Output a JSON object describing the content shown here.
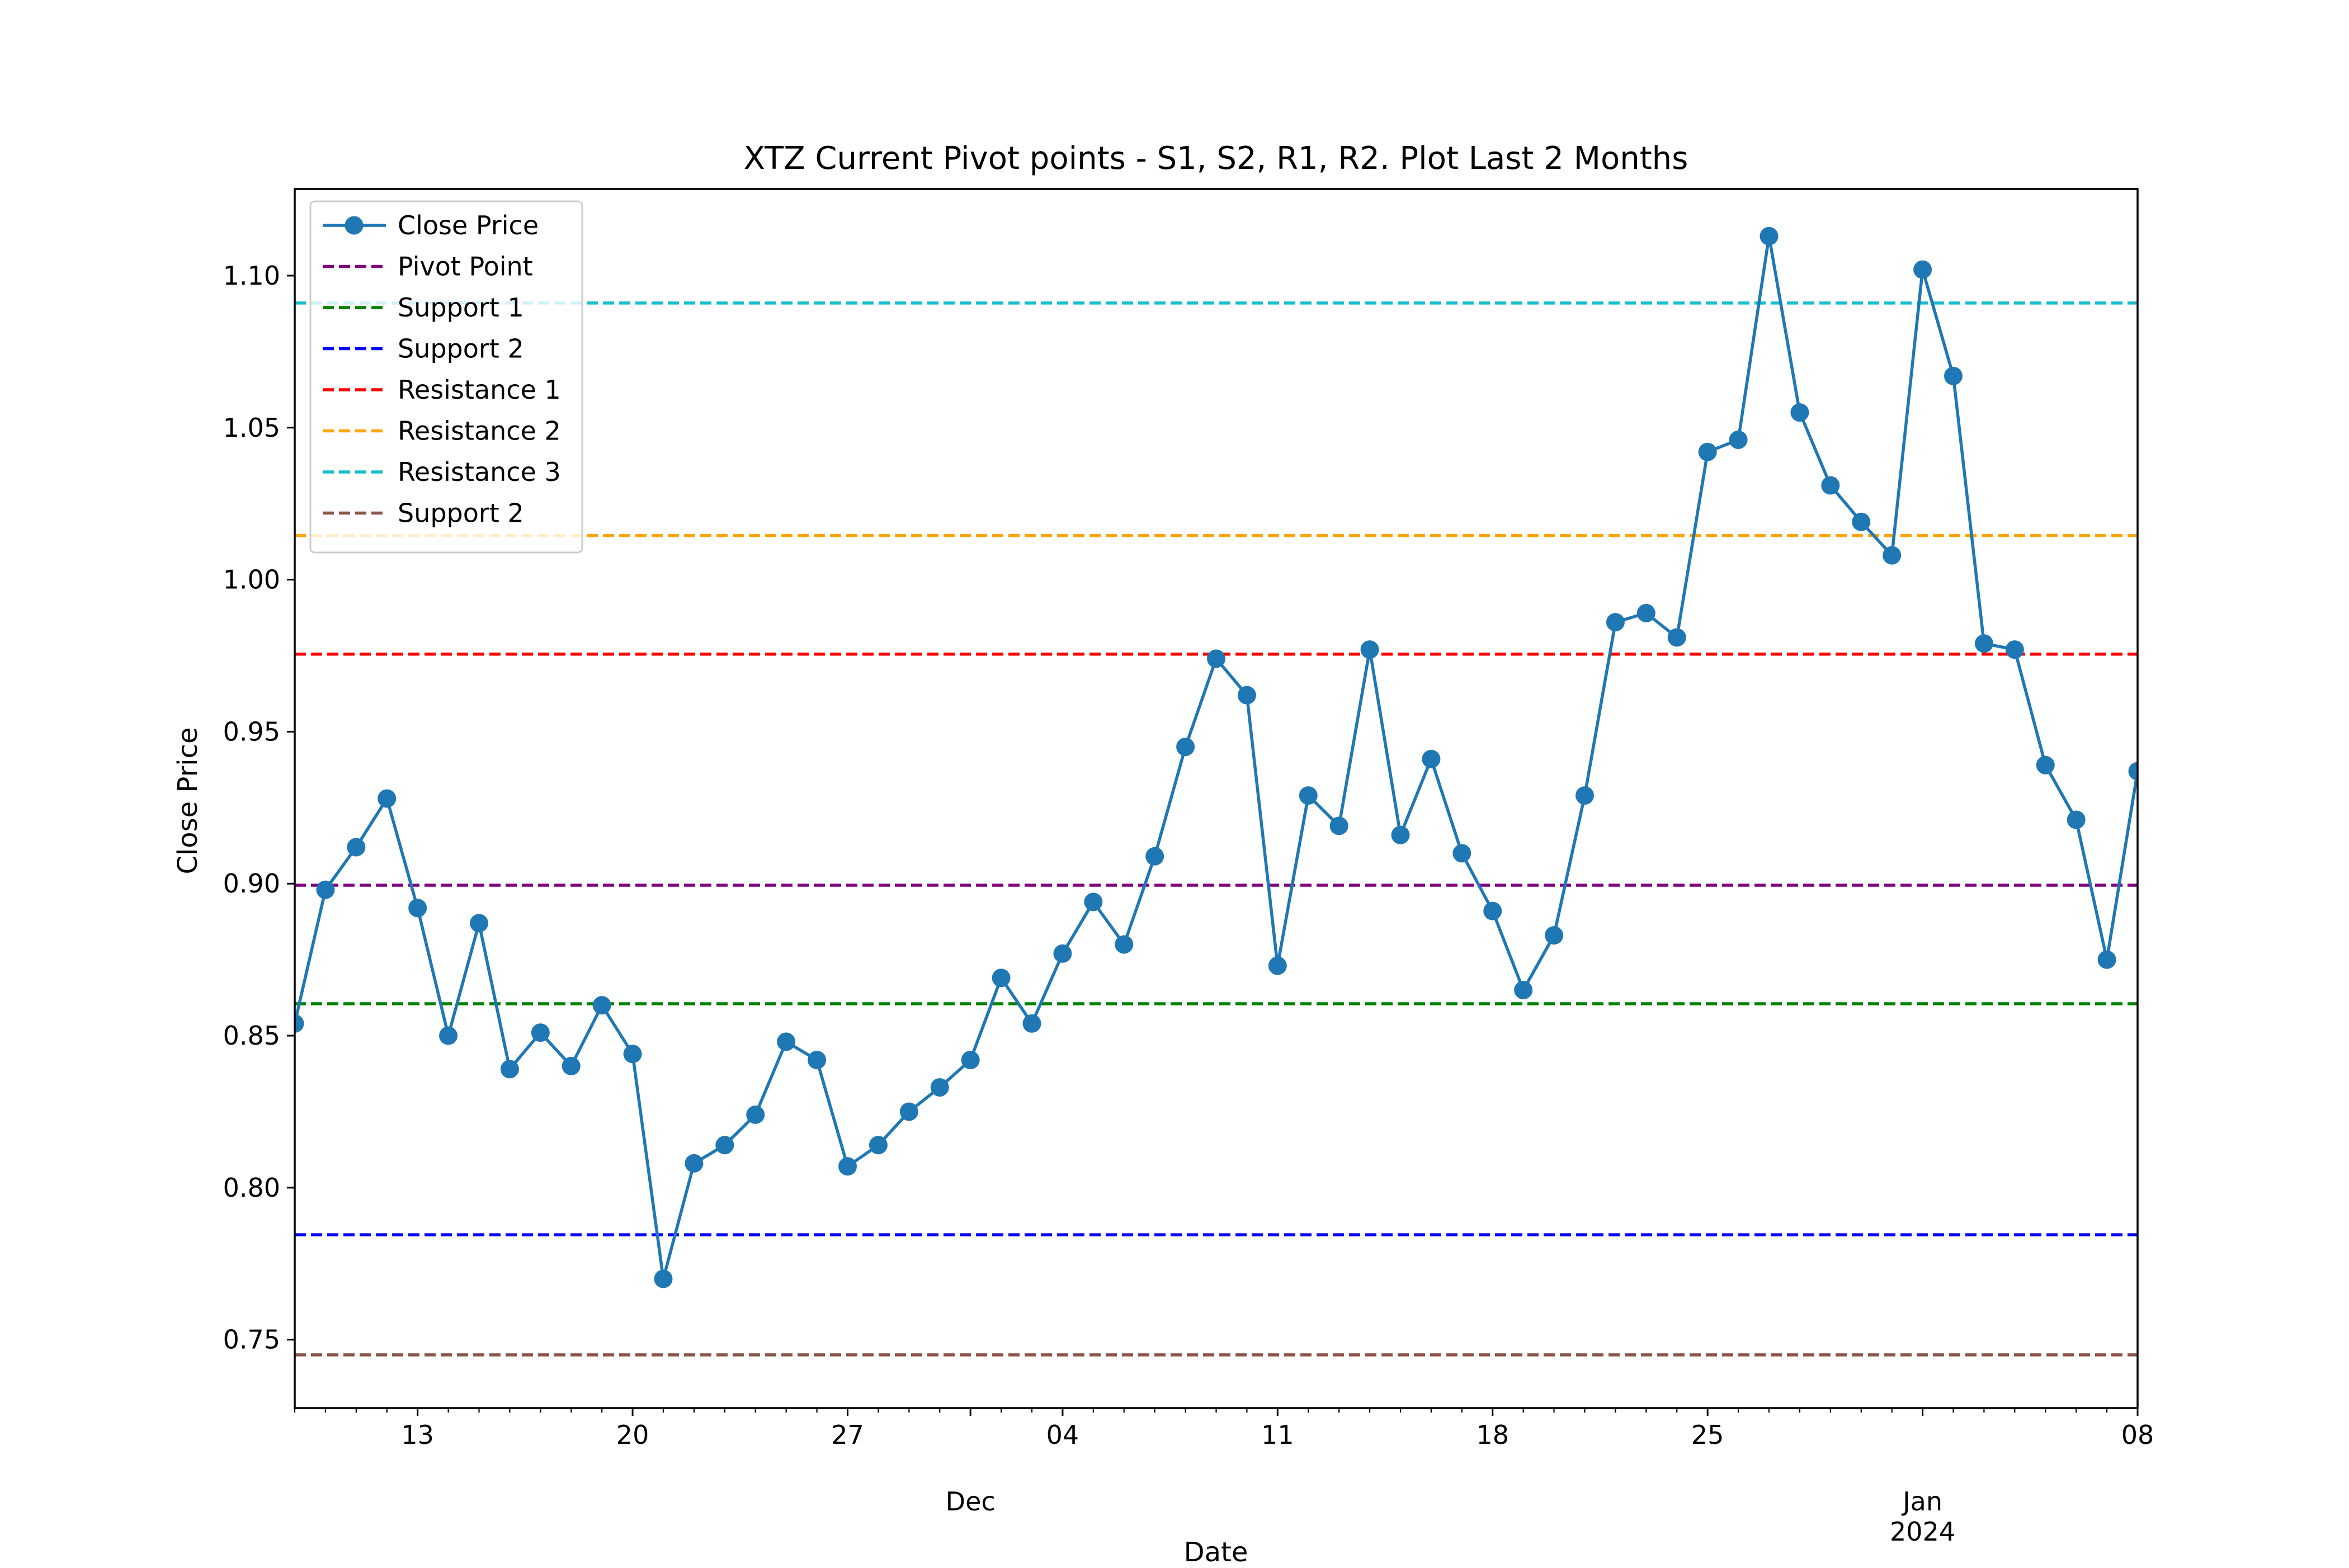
{
  "chart_data": {
    "type": "line",
    "title": "XTZ Current Pivot points - S1, S2, R1, R2. Plot Last 2 Months",
    "xlabel": "Date",
    "ylabel": "Close Price",
    "x_range": [
      "2023-11-09",
      "2024-01-08"
    ],
    "ylim": [
      0.7275,
      1.1285
    ],
    "y_ticks": [
      {
        "value": 0.75,
        "label": "0.75"
      },
      {
        "value": 0.8,
        "label": "0.80"
      },
      {
        "value": 0.85,
        "label": "0.85"
      },
      {
        "value": 0.9,
        "label": "0.90"
      },
      {
        "value": 0.95,
        "label": "0.95"
      },
      {
        "value": 1.0,
        "label": "1.00"
      },
      {
        "value": 1.05,
        "label": "1.05"
      },
      {
        "value": 1.1,
        "label": "1.10"
      }
    ],
    "x_major_ticks": [
      {
        "date": "2023-11-13",
        "label": "13"
      },
      {
        "date": "2023-11-20",
        "label": "20"
      },
      {
        "date": "2023-11-27",
        "label": "27"
      },
      {
        "date": "2023-12-04",
        "label": "04"
      },
      {
        "date": "2023-12-11",
        "label": "11"
      },
      {
        "date": "2023-12-18",
        "label": "18"
      },
      {
        "date": "2023-12-25",
        "label": "25"
      },
      {
        "date": "2024-01-08",
        "label": "08"
      }
    ],
    "x_month_labels": [
      {
        "date": "2023-12-01",
        "label": "Dec"
      },
      {
        "date": "2024-01-01",
        "label": "Jan\n2024"
      }
    ],
    "legend_position": "upper-left",
    "grid": false,
    "series": [
      {
        "name": "Close Price",
        "style": "line-marker",
        "color": "#1f77b4",
        "x": [
          "2023-11-09",
          "2023-11-10",
          "2023-11-11",
          "2023-11-12",
          "2023-11-13",
          "2023-11-14",
          "2023-11-15",
          "2023-11-16",
          "2023-11-17",
          "2023-11-18",
          "2023-11-19",
          "2023-11-20",
          "2023-11-21",
          "2023-11-22",
          "2023-11-23",
          "2023-11-24",
          "2023-11-25",
          "2023-11-26",
          "2023-11-27",
          "2023-11-28",
          "2023-11-29",
          "2023-11-30",
          "2023-12-01",
          "2023-12-02",
          "2023-12-03",
          "2023-12-04",
          "2023-12-05",
          "2023-12-06",
          "2023-12-07",
          "2023-12-08",
          "2023-12-09",
          "2023-12-10",
          "2023-12-11",
          "2023-12-12",
          "2023-12-13",
          "2023-12-14",
          "2023-12-15",
          "2023-12-16",
          "2023-12-17",
          "2023-12-18",
          "2023-12-19",
          "2023-12-20",
          "2023-12-21",
          "2023-12-22",
          "2023-12-23",
          "2023-12-24",
          "2023-12-25",
          "2023-12-26",
          "2023-12-27",
          "2023-12-28",
          "2023-12-29",
          "2023-12-30",
          "2023-12-31",
          "2024-01-01",
          "2024-01-02",
          "2024-01-03",
          "2024-01-04",
          "2024-01-05",
          "2024-01-06",
          "2024-01-07",
          "2024-01-08"
        ],
        "values": [
          0.854,
          0.898,
          0.912,
          0.928,
          0.892,
          0.85,
          0.887,
          0.839,
          0.851,
          0.84,
          0.86,
          0.844,
          0.77,
          0.808,
          0.814,
          0.824,
          0.848,
          0.842,
          0.807,
          0.814,
          0.825,
          0.833,
          0.842,
          0.869,
          0.854,
          0.877,
          0.894,
          0.88,
          0.909,
          0.945,
          0.974,
          0.962,
          0.873,
          0.929,
          0.919,
          0.977,
          0.916,
          0.941,
          0.91,
          0.891,
          0.865,
          0.883,
          0.929,
          0.986,
          0.989,
          0.981,
          1.042,
          1.046,
          1.113,
          1.055,
          1.031,
          1.019,
          1.008,
          1.102,
          1.067,
          0.979,
          0.977,
          0.939,
          0.921,
          0.875,
          0.937
        ]
      },
      {
        "name": "Pivot Point",
        "style": "hline-dashed",
        "color": "#800080",
        "value": 0.8995
      },
      {
        "name": "Support 1",
        "style": "hline-dashed",
        "color": "#008000",
        "value": 0.8605
      },
      {
        "name": "Support 2",
        "style": "hline-dashed",
        "color": "#0000ff",
        "value": 0.7845
      },
      {
        "name": "Resistance 1",
        "style": "hline-dashed",
        "color": "#ff0000",
        "value": 0.9755
      },
      {
        "name": "Resistance 2",
        "style": "hline-dashed",
        "color": "#ffa500",
        "value": 1.0145
      },
      {
        "name": "Resistance 3",
        "style": "hline-dashed",
        "color": "#17becf",
        "value": 1.091
      },
      {
        "name": "Support 2",
        "style": "hline-dashed",
        "color": "#8c564b",
        "value": 0.745
      }
    ]
  }
}
